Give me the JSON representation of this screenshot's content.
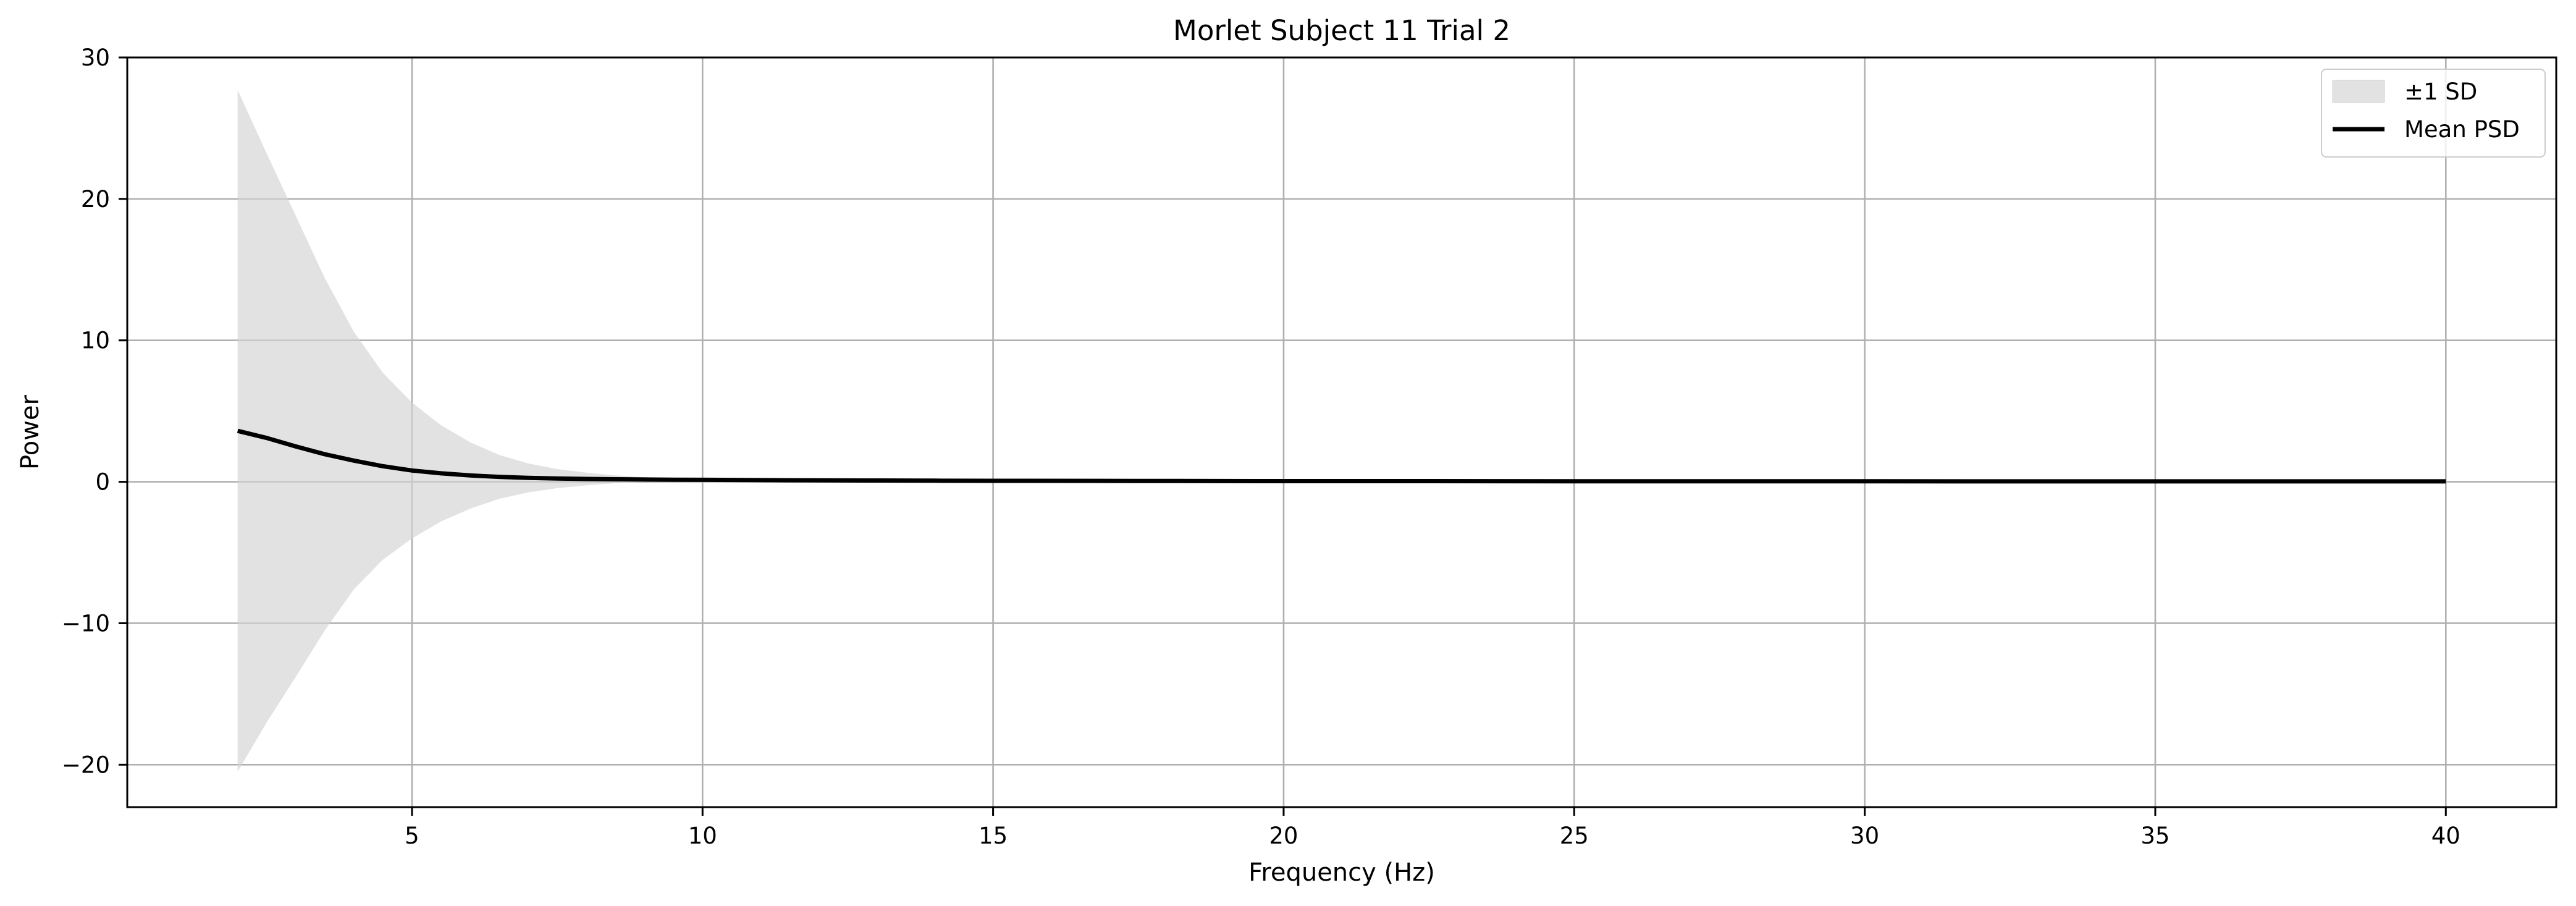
{
  "chart_data": {
    "type": "area",
    "title": "Morlet Subject 11 Trial 2",
    "xlabel": "Frequency (Hz)",
    "ylabel": "Power",
    "xlim": [
      0.1,
      41.9
    ],
    "ylim": [
      -23,
      30
    ],
    "xticks": [
      5,
      10,
      15,
      20,
      25,
      30,
      35,
      40
    ],
    "xtick_labels": [
      "5",
      "10",
      "15",
      "20",
      "25",
      "30",
      "35",
      "40"
    ],
    "yticks": [
      -20,
      -10,
      0,
      10,
      20,
      30
    ],
    "ytick_labels": [
      "−20",
      "−10",
      "0",
      "10",
      "20",
      "30"
    ],
    "grid": true,
    "legend_position": "upper right",
    "legend": [
      "±1 SD",
      "Mean PSD"
    ],
    "colors": {
      "mean": "#000000",
      "band": "#d3d3d3",
      "grid": "#b0b0b0"
    },
    "x": [
      2,
      2.5,
      3,
      3.5,
      4,
      4.5,
      5,
      5.5,
      6,
      6.5,
      7,
      7.5,
      8,
      8.5,
      9,
      9.5,
      10,
      11,
      12,
      13,
      14,
      15,
      17.5,
      20,
      22.5,
      25,
      27.5,
      30,
      32.5,
      35,
      37.5,
      40
    ],
    "series": [
      {
        "name": "Mean PSD",
        "values": [
          3.6,
          3.1,
          2.5,
          1.95,
          1.5,
          1.1,
          0.8,
          0.6,
          0.45,
          0.35,
          0.28,
          0.23,
          0.2,
          0.18,
          0.16,
          0.15,
          0.14,
          0.12,
          0.1,
          0.09,
          0.08,
          0.07,
          0.06,
          0.05,
          0.05,
          0.04,
          0.04,
          0.04,
          0.03,
          0.03,
          0.03,
          0.03
        ]
      },
      {
        "name": "±1 SD",
        "lower": [
          -20.5,
          -17,
          -13.8,
          -10.5,
          -7.6,
          -5.5,
          -4.0,
          -2.8,
          -1.9,
          -1.2,
          -0.75,
          -0.45,
          -0.25,
          -0.1,
          0.0,
          0.05,
          0.08,
          0.09,
          0.08,
          0.08,
          0.07,
          0.06,
          0.05,
          0.04,
          0.04,
          0.03,
          0.03,
          0.03,
          0.02,
          0.02,
          0.02,
          0.02
        ],
        "upper": [
          27.7,
          23.2,
          18.8,
          14.4,
          10.6,
          7.7,
          5.6,
          4.0,
          2.8,
          1.9,
          1.3,
          0.9,
          0.65,
          0.46,
          0.32,
          0.25,
          0.2,
          0.15,
          0.12,
          0.1,
          0.09,
          0.08,
          0.07,
          0.06,
          0.06,
          0.05,
          0.05,
          0.05,
          0.04,
          0.04,
          0.04,
          0.04
        ]
      }
    ]
  }
}
